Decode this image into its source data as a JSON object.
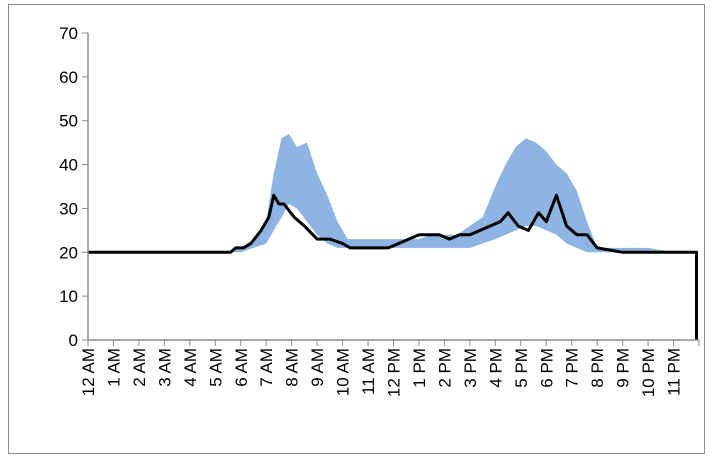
{
  "chart_data": {
    "type": "area",
    "title": "",
    "xlabel": "",
    "ylabel": "",
    "ylim": [
      0,
      70
    ],
    "yticks": [
      0,
      10,
      20,
      30,
      40,
      50,
      60,
      70
    ],
    "xlim": [
      0,
      24
    ],
    "categories": [
      "12 AM",
      "1 AM",
      "2 AM",
      "3 AM",
      "4 AM",
      "5 AM",
      "6 AM",
      "7 AM",
      "8 AM",
      "9 AM",
      "10 AM",
      "11 AM",
      "12 PM",
      "1 PM",
      "2 PM",
      "3 PM",
      "4 PM",
      "5 PM",
      "6 PM",
      "7 PM",
      "8 PM",
      "9 PM",
      "10 PM",
      "11 PM"
    ],
    "grid": false,
    "legend": "none",
    "colors": {
      "band": "#8eb4e3",
      "line": "#000000",
      "axis": "#8c8c8c"
    },
    "series": [
      {
        "kind": "range-band",
        "x": [
          0,
          5.5,
          6,
          6.5,
          7,
          7.3,
          7.6,
          7.9,
          8.2,
          8.6,
          9,
          9.4,
          9.8,
          10.2,
          10.6,
          11,
          11.5,
          12,
          12.5,
          13,
          13.5,
          14,
          14.5,
          15,
          15.5,
          16,
          16.4,
          16.8,
          17.2,
          17.6,
          18,
          18.4,
          18.8,
          19.2,
          19.6,
          20,
          20.5,
          21,
          21.5,
          22,
          23,
          23.8
        ],
        "low": [
          20,
          20,
          20,
          21,
          22,
          25,
          28,
          31,
          30,
          27,
          24,
          22,
          21,
          21,
          21,
          21,
          21,
          21,
          21,
          21,
          21,
          21,
          21,
          21,
          22,
          23,
          24,
          25,
          26,
          26,
          25,
          24,
          22,
          21,
          20,
          20,
          20,
          20,
          20,
          20,
          20,
          20
        ],
        "high": [
          20,
          20,
          21,
          23,
          27,
          38,
          46,
          47,
          44,
          45,
          38,
          33,
          27,
          23,
          23,
          23,
          23,
          23,
          23,
          23,
          24,
          24,
          24,
          26,
          28,
          35,
          40,
          44,
          46,
          45,
          43,
          40,
          38,
          34,
          27,
          21,
          21,
          21,
          21,
          21,
          20,
          20
        ]
      },
      {
        "kind": "line",
        "x": [
          0,
          5.6,
          5.8,
          6.1,
          6.4,
          6.8,
          7.1,
          7.3,
          7.5,
          7.7,
          8.1,
          8.5,
          9,
          9.5,
          10,
          10.3,
          10.6,
          11,
          11.4,
          11.8,
          12.2,
          12.6,
          13,
          13.4,
          13.8,
          14.2,
          14.6,
          15,
          15.4,
          15.8,
          16.2,
          16.5,
          16.9,
          17.3,
          17.7,
          18,
          18.4,
          18.8,
          19.2,
          19.6,
          20,
          21,
          22,
          23,
          23.9
        ],
        "y": [
          20,
          20,
          21,
          21,
          22,
          25,
          28,
          33,
          31,
          31,
          28,
          26,
          23,
          23,
          22,
          21,
          21,
          21,
          21,
          21,
          22,
          23,
          24,
          24,
          24,
          23,
          24,
          24,
          25,
          26,
          27,
          29,
          26,
          25,
          29,
          27,
          33,
          26,
          24,
          24,
          21,
          20,
          20,
          20,
          20
        ]
      }
    ]
  }
}
